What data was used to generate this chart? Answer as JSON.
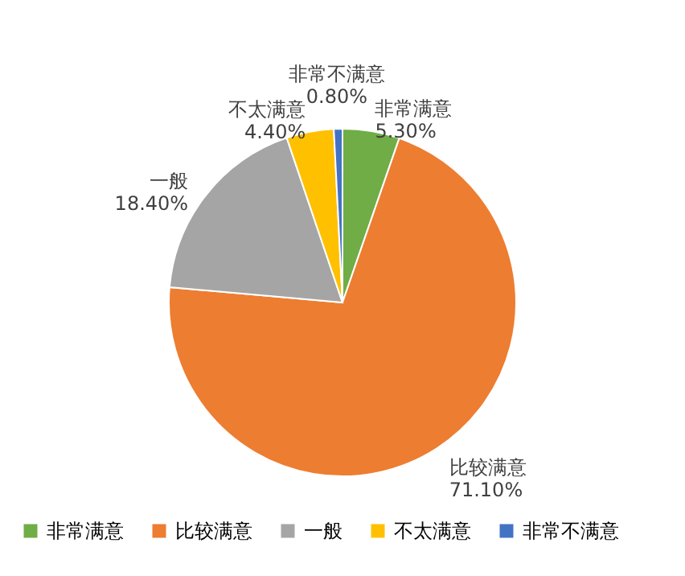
{
  "chart_data": {
    "type": "pie",
    "categories": [
      "非常满意",
      "比较满意",
      "一般",
      "不太满意",
      "非常不满意"
    ],
    "values": [
      5.3,
      71.1,
      18.4,
      4.4,
      0.8
    ],
    "value_labels": [
      "5.30%",
      "71.10%",
      "18.40%",
      "4.40%",
      "0.80%"
    ],
    "colors": [
      "#70ad47",
      "#ed7d31",
      "#a5a5a5",
      "#ffc000",
      "#4472c4"
    ],
    "legend": "bottom"
  }
}
